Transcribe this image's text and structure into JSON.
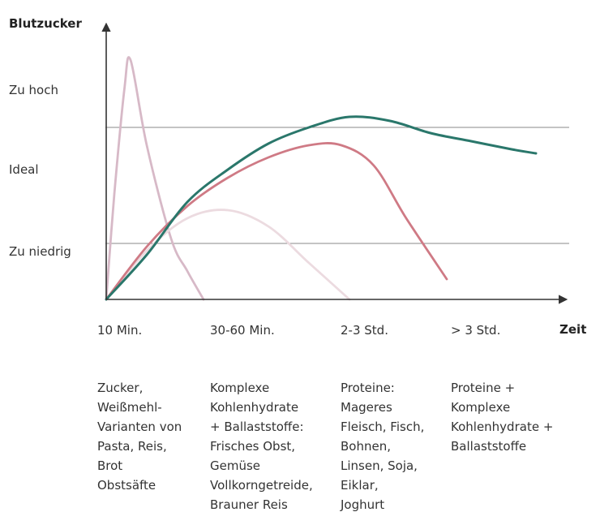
{
  "chart_data": {
    "type": "line",
    "ylabel": "Blutzucker",
    "xlabel": "Zeit",
    "y_levels": [
      "Zu hoch",
      "Ideal",
      "Zu niedrig"
    ],
    "x_ticks": [
      "10 Min.",
      "30-60 Min.",
      "2-3 Std.",
      "> 3 Std."
    ],
    "reference_lines": [
      "upper-threshold",
      "lower-threshold"
    ],
    "grid": false,
    "legend": "none",
    "food_groups": [
      {
        "text": "Zucker,\nWeißmehl-\nVarianten von\nPasta, Reis,\nBrot\nObstsäfte"
      },
      {
        "text": "Komplexe\nKohlenhydrate\n+ Ballaststoffe:\nFrisches Obst,\nGemüse\nVollkorngetreide,\nBrauner Reis"
      },
      {
        "text": "Proteine:\nMageres\nFleisch, Fisch,\nBohnen,\nLinsen, Soja,\nEiklar,\nJoghurt"
      },
      {
        "text": "Proteine +\nKomplexe\nKohlenhydrate +\nBallaststoffe"
      }
    ],
    "series": [
      {
        "color": "#d7b9c7",
        "x": [
          0,
          0.2,
          0.45,
          0.6,
          1.0,
          1.6,
          2.0,
          2.4
        ],
        "y": [
          0,
          1.3,
          2.6,
          2.95,
          1.9,
          0.75,
          0.35,
          0
        ]
      },
      {
        "color": "#ecdbe0",
        "x": [
          0,
          1.0,
          2.0,
          3.0,
          4.0,
          5.0,
          6.0
        ],
        "y": [
          0,
          0.6,
          1.0,
          1.1,
          0.9,
          0.45,
          0
        ]
      },
      {
        "color": "#cf7a85",
        "x": [
          0,
          1.0,
          2.0,
          3.0,
          4.0,
          5.0,
          5.8,
          6.6,
          7.4,
          8.4
        ],
        "y": [
          0,
          0.65,
          1.15,
          1.5,
          1.75,
          1.9,
          1.9,
          1.65,
          1.0,
          0.25
        ]
      },
      {
        "color": "#2a776b",
        "x": [
          0,
          1.0,
          2.0,
          3.0,
          4.0,
          5.0,
          6.0,
          7.0,
          8.0,
          9.0,
          10.0,
          10.6
        ],
        "y": [
          0,
          0.55,
          1.2,
          1.6,
          1.92,
          2.12,
          2.25,
          2.2,
          2.05,
          1.95,
          1.85,
          1.8
        ]
      }
    ]
  }
}
